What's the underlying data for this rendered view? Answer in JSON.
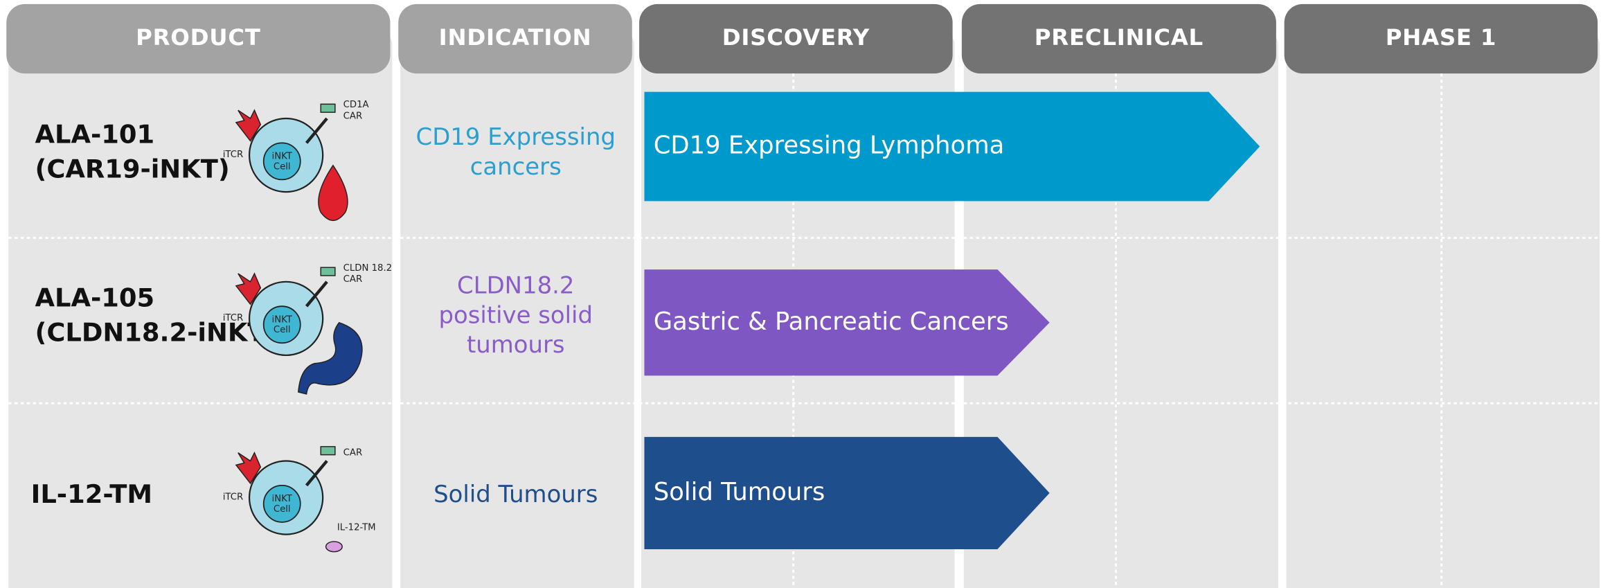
{
  "headers": [
    "PRODUCT",
    "INDICATION",
    "DISCOVERY",
    "PRECLINICAL",
    "PHASE 1"
  ],
  "rows": [
    {
      "product": [
        "ALA-101",
        "(CAR19-iNKT)"
      ],
      "indication": [
        "CD19 Expressing",
        "cancers"
      ],
      "program": "CD19 Expressing Lymphoma",
      "illustration": {
        "car": [
          "CD1A",
          "CAR"
        ],
        "cell": [
          "iNKT",
          "Cell"
        ],
        "tcr": "iTCR"
      }
    },
    {
      "product": [
        "ALA-105",
        "(CLDN18.2-iNKT)"
      ],
      "indication": [
        "CLDN18.2",
        "positive solid",
        "tumours"
      ],
      "program": "Gastric & Pancreatic Cancers",
      "illustration": {
        "car": [
          "CLDN 18.2",
          "CAR"
        ],
        "cell": [
          "iNKT",
          "Cell"
        ],
        "tcr": "iTCR"
      }
    },
    {
      "product": [
        "IL-12-TM"
      ],
      "indication": [
        "Solid Tumours"
      ],
      "program": "Solid Tumours",
      "illustration": {
        "car": [
          "CAR"
        ],
        "cell": [
          "iNKT",
          "Cell"
        ],
        "tcr": "iTCR",
        "extra": "IL-12-TM"
      }
    }
  ]
}
